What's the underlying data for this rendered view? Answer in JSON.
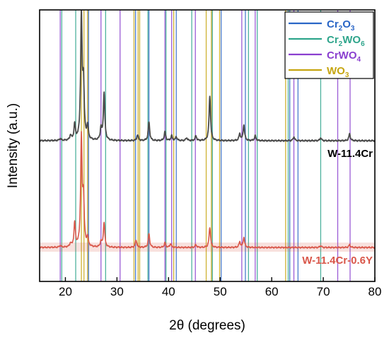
{
  "chart_data": {
    "type": "line",
    "xlabel": "2θ (degrees)",
    "ylabel": "Intensity (a.u.)",
    "xlim": [
      15,
      80
    ],
    "xticks": [
      20,
      30,
      40,
      50,
      60,
      70,
      80
    ],
    "y_ticks_shown": false,
    "grid": false,
    "legend_position": "top-right",
    "legend": [
      {
        "label": "Cr2O3",
        "formula": [
          "Cr",
          "2",
          "O",
          "3"
        ],
        "color": "#2a66c6"
      },
      {
        "label": "Cr2WO6",
        "formula": [
          "Cr",
          "2",
          "WO",
          "6"
        ],
        "color": "#2fa58c"
      },
      {
        "label": "CrWO4",
        "formula": [
          "CrWO",
          "4"
        ],
        "color": "#8a3fcf"
      },
      {
        "label": "WO3",
        "formula": [
          "WO",
          "3"
        ],
        "color": "#c6a511"
      }
    ],
    "reference_lines": [
      {
        "phase": "Cr2O3",
        "color": "#2a66c6",
        "x": [
          24.5,
          33.6,
          36.2,
          41.5,
          50.2,
          54.9,
          63.5,
          65.1
        ]
      },
      {
        "phase": "Cr2WO6",
        "color": "#2fa58c",
        "x": [
          19.3,
          22.0,
          27.8,
          36.0,
          39.5,
          44.5,
          48.5,
          55.5,
          57.2,
          63.2,
          69.5
        ]
      },
      {
        "phase": "CrWO4",
        "color": "#8a3fcf",
        "x": [
          19.0,
          26.9,
          30.6,
          39.3,
          40.6,
          45.2,
          54.2,
          56.8,
          64.3,
          72.8,
          75.2
        ]
      },
      {
        "phase": "WO3",
        "color": "#c6a511",
        "x": [
          23.1,
          23.6,
          24.3,
          33.3,
          34.1,
          34.4,
          41.0,
          47.3,
          48.3,
          49.9,
          62.7
        ]
      }
    ],
    "series": [
      {
        "name": "W-11.4Cr",
        "color": "#4a4a4a",
        "baseline": 1.0,
        "peaks": [
          {
            "x": 19.0,
            "y": 0.02
          },
          {
            "x": 21.0,
            "y": 0.05
          },
          {
            "x": 21.8,
            "y": 0.16
          },
          {
            "x": 23.1,
            "y": 1.27
          },
          {
            "x": 23.5,
            "y": 0.55
          },
          {
            "x": 24.3,
            "y": 0.14
          },
          {
            "x": 26.9,
            "y": 0.12
          },
          {
            "x": 27.5,
            "y": 0.49
          },
          {
            "x": 34.0,
            "y": 0.06
          },
          {
            "x": 36.2,
            "y": 0.19
          },
          {
            "x": 39.3,
            "y": 0.09
          },
          {
            "x": 40.6,
            "y": 0.05
          },
          {
            "x": 41.5,
            "y": 0.04
          },
          {
            "x": 43.5,
            "y": 0.03
          },
          {
            "x": 45.3,
            "y": 0.05
          },
          {
            "x": 48.0,
            "y": 0.46
          },
          {
            "x": 53.8,
            "y": 0.07
          },
          {
            "x": 54.6,
            "y": 0.16
          },
          {
            "x": 56.8,
            "y": 0.05
          },
          {
            "x": 64.3,
            "y": 0.04
          },
          {
            "x": 69.5,
            "y": 0.03
          },
          {
            "x": 75.1,
            "y": 0.07
          }
        ]
      },
      {
        "name": "W-11.4Cr-0.6Y",
        "color": "#d9574a",
        "baseline": 0.0,
        "peaks": [
          {
            "x": 19.0,
            "y": 0.02
          },
          {
            "x": 21.0,
            "y": 0.04
          },
          {
            "x": 21.8,
            "y": 0.26
          },
          {
            "x": 23.1,
            "y": 1.17
          },
          {
            "x": 23.5,
            "y": 0.5
          },
          {
            "x": 24.3,
            "y": 0.1
          },
          {
            "x": 26.9,
            "y": 0.06
          },
          {
            "x": 27.5,
            "y": 0.27
          },
          {
            "x": 33.7,
            "y": 0.08
          },
          {
            "x": 36.2,
            "y": 0.15
          },
          {
            "x": 39.3,
            "y": 0.05
          },
          {
            "x": 40.4,
            "y": 0.04
          },
          {
            "x": 45.3,
            "y": 0.03
          },
          {
            "x": 48.0,
            "y": 0.22
          },
          {
            "x": 53.8,
            "y": 0.06
          },
          {
            "x": 54.6,
            "y": 0.11
          },
          {
            "x": 69.5,
            "y": 0.02
          },
          {
            "x": 75.1,
            "y": 0.03
          }
        ]
      }
    ]
  }
}
